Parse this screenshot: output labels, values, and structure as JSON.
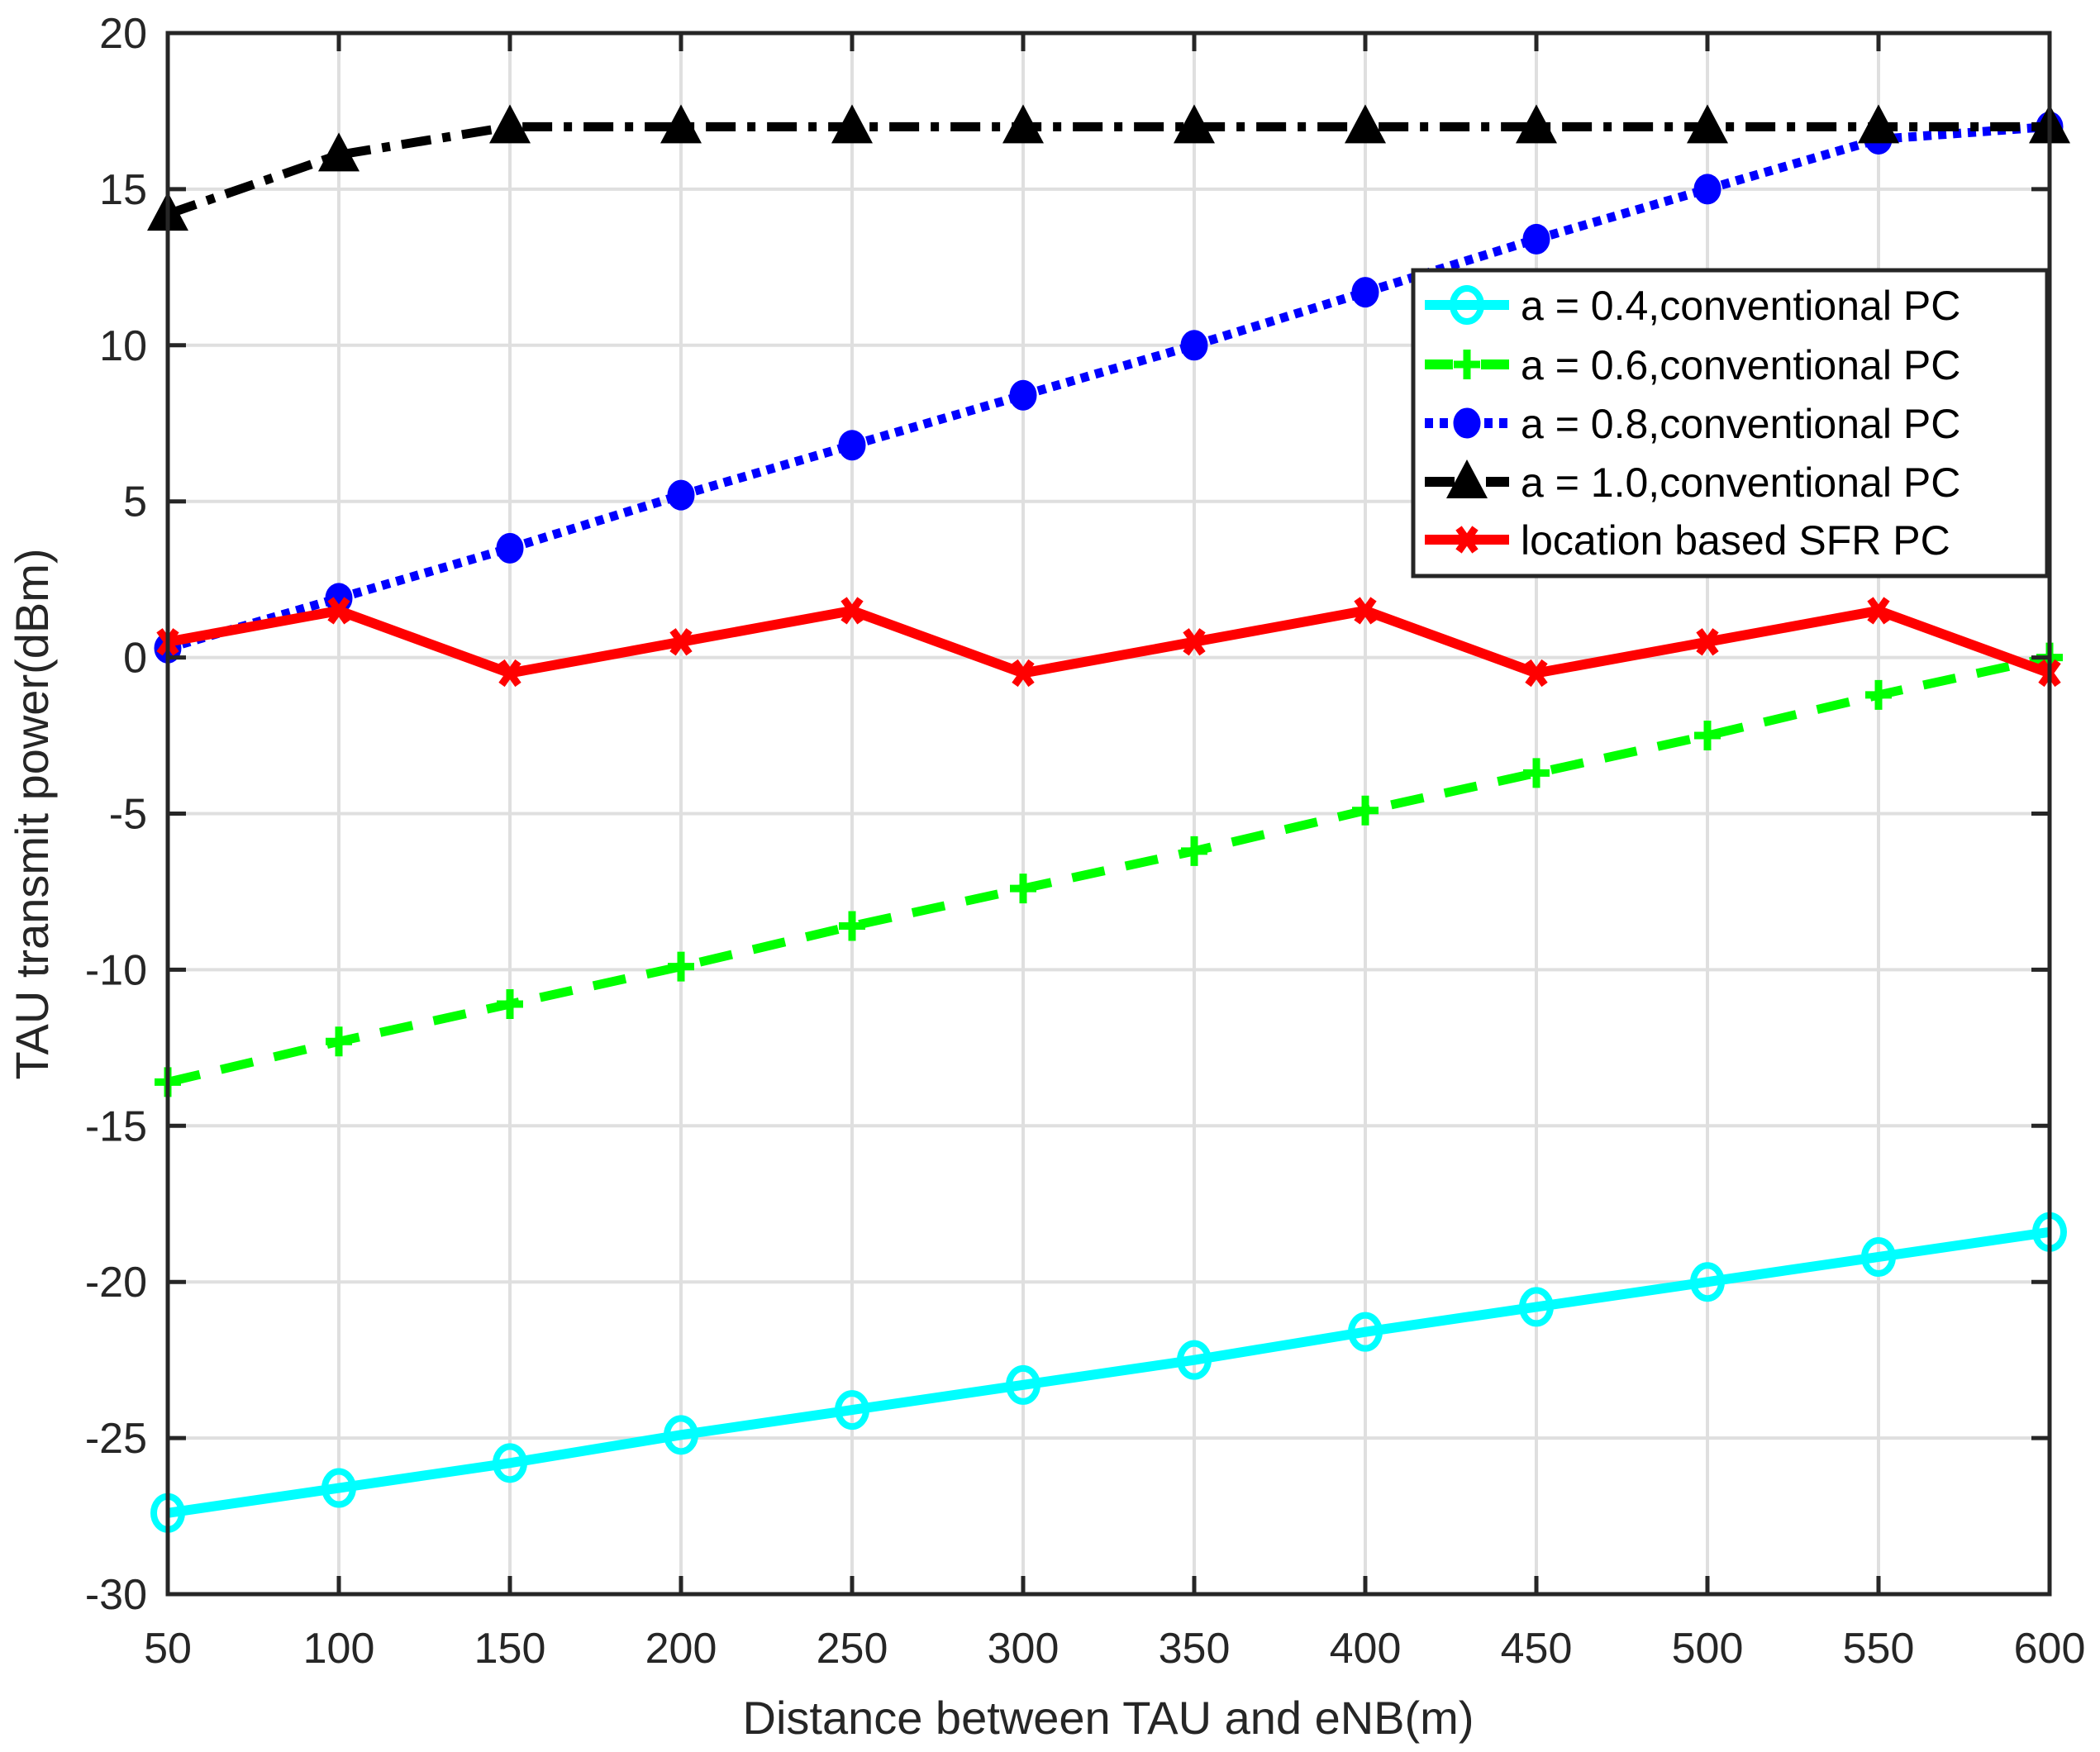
{
  "chart_data": {
    "type": "line",
    "title": "",
    "xlabel": "Distance between TAU and eNB(m)",
    "ylabel": "TAU transmit power(dBm)",
    "xlim": [
      50,
      600
    ],
    "ylim": [
      -30,
      20
    ],
    "x_ticks": [
      50,
      100,
      150,
      200,
      250,
      300,
      350,
      400,
      450,
      500,
      550,
      600
    ],
    "y_ticks": [
      20,
      15,
      10,
      5,
      0,
      -5,
      -10,
      -15,
      -20,
      -25,
      -30
    ],
    "grid": true,
    "legend_position": "upper right",
    "x": [
      50,
      100,
      150,
      200,
      250,
      300,
      350,
      400,
      450,
      500,
      550,
      600
    ],
    "series": [
      {
        "name": "a = 0.4,conventional PC",
        "color": "#00FFFF",
        "line_style": "solid",
        "marker": "circle-open",
        "values": [
          -27.4,
          -26.6,
          -25.8,
          -24.9,
          -24.1,
          -23.3,
          -22.5,
          -21.6,
          -20.8,
          -20.0,
          -19.2,
          -18.4
        ]
      },
      {
        "name": "a = 0.6,conventional PC",
        "color": "#00FF00",
        "line_style": "dashed",
        "marker": "plus",
        "values": [
          -13.6,
          -12.3,
          -11.1,
          -9.9,
          -8.6,
          -7.4,
          -6.2,
          -4.9,
          -3.7,
          -2.5,
          -1.2,
          0.0
        ]
      },
      {
        "name": "a = 0.8,conventional PC",
        "color": "#0000FF",
        "line_style": "dotted",
        "marker": "circle-filled",
        "values": [
          0.3,
          1.9,
          3.5,
          5.2,
          6.8,
          8.4,
          10.0,
          11.7,
          13.4,
          15.0,
          16.6,
          17.0
        ]
      },
      {
        "name": "a = 1.0,conventional PC",
        "color": "#000000",
        "line_style": "dashdot",
        "marker": "triangle-filled",
        "values": [
          14.2,
          16.1,
          17.0,
          17.0,
          17.0,
          17.0,
          17.0,
          17.0,
          17.0,
          17.0,
          17.0,
          17.0
        ]
      },
      {
        "name": "location based SFR PC",
        "color": "#FF0000",
        "line_style": "solid",
        "marker": "x-filled",
        "values": [
          0.5,
          1.5,
          -0.5,
          0.5,
          1.5,
          -0.5,
          0.5,
          1.5,
          -0.5,
          0.5,
          1.5,
          -0.5
        ]
      }
    ]
  },
  "legend": {
    "items": [
      {
        "label": "a = 0.4,conventional PC"
      },
      {
        "label": "a = 0.6,conventional PC"
      },
      {
        "label": "a = 0.8,conventional PC"
      },
      {
        "label": "a = 1.0,conventional PC"
      },
      {
        "label": "location based SFR PC"
      }
    ]
  },
  "axes": {
    "x_label": "Distance between TAU and eNB(m)",
    "y_label": "TAU transmit power(dBm)"
  },
  "colors": {
    "axis": "#262626",
    "grid": "#DFDFDF"
  }
}
